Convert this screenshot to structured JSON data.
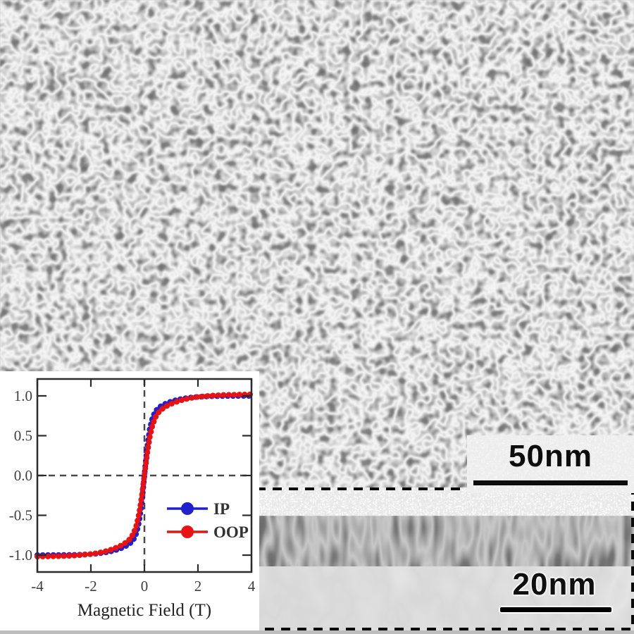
{
  "figure": {
    "scale_bars": {
      "plan": {
        "label": "50nm"
      },
      "cross": {
        "label": "20nm"
      }
    }
  },
  "colors": {
    "ip": "#2020cc",
    "oop": "#e81212",
    "axis": "#2b2b2b",
    "tick_text": "#3f3f3f"
  },
  "chart_data": {
    "type": "scatter",
    "title": "",
    "xlabel": "Magnetic Field (T)",
    "ylabel": "",
    "xlim": [
      -4,
      4
    ],
    "ylim": [
      -1.212,
      1.212
    ],
    "x_ticks": [
      -4,
      -2,
      0,
      2,
      4
    ],
    "x_tick_labels": [
      "-4",
      "-2",
      "0",
      "2",
      "4"
    ],
    "y_ticks": [
      1.0,
      0.5,
      0.0,
      -0.5,
      -1.0
    ],
    "y_tick_labels": [
      "1.0",
      "0.5",
      "0.0",
      "-0.5",
      "-1.0"
    ],
    "grid": false,
    "reference_lines": {
      "x": 0,
      "y": 0,
      "style": "dashed"
    },
    "legend_position": "center-right",
    "x": [
      -4,
      -3.5,
      -3,
      -2.5,
      -2,
      -1.75,
      -1.5,
      -1.25,
      -1,
      -0.8,
      -0.6,
      -0.5,
      -0.4,
      -0.3,
      -0.2,
      -0.1,
      -0.05,
      0,
      0.05,
      0.1,
      0.2,
      0.3,
      0.4,
      0.5,
      0.6,
      0.8,
      1,
      1.25,
      1.5,
      1.75,
      2,
      2.5,
      3,
      3.5,
      4
    ],
    "series": [
      {
        "name": "IP",
        "color": "#2020cc",
        "marker": "circle",
        "y": [
          -1.0,
          -0.999,
          -0.998,
          -0.995,
          -0.987,
          -0.98,
          -0.969,
          -0.953,
          -0.93,
          -0.904,
          -0.868,
          -0.841,
          -0.799,
          -0.725,
          -0.585,
          -0.342,
          -0.179,
          0,
          0.179,
          0.342,
          0.585,
          0.725,
          0.799,
          0.841,
          0.868,
          0.904,
          0.93,
          0.953,
          0.969,
          0.98,
          0.987,
          0.995,
          0.998,
          0.999,
          1.0
        ]
      },
      {
        "name": "OOP",
        "color": "#e81212",
        "marker": "circle",
        "y": [
          -1.018,
          -1.016,
          -1.012,
          -1.003,
          -0.987,
          -0.974,
          -0.956,
          -0.932,
          -0.9,
          -0.867,
          -0.818,
          -0.78,
          -0.722,
          -0.628,
          -0.481,
          -0.266,
          -0.135,
          0,
          0.135,
          0.266,
          0.481,
          0.628,
          0.722,
          0.78,
          0.818,
          0.867,
          0.9,
          0.932,
          0.956,
          0.974,
          0.987,
          1.003,
          1.012,
          1.016,
          1.018
        ]
      }
    ]
  }
}
